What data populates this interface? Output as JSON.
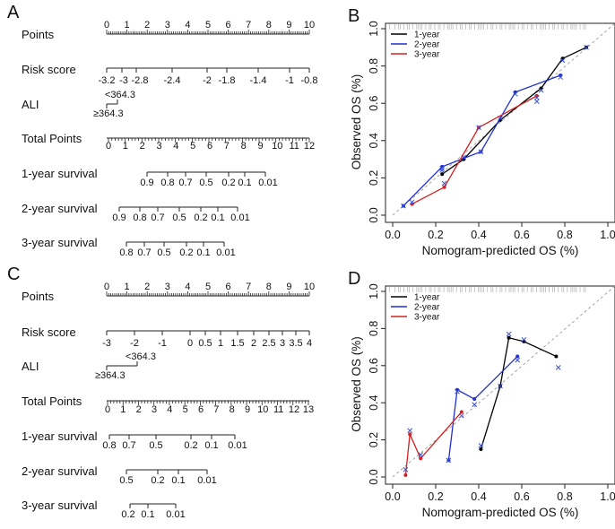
{
  "panels": {
    "A": {
      "letter": "A",
      "rows": [
        {
          "label": "Points",
          "ticks": [
            "0",
            "1",
            "2",
            "3",
            "4",
            "5",
            "6",
            "7",
            "8",
            "9",
            "10"
          ]
        },
        {
          "label": "Risk score",
          "ticks": [
            "-3.2",
            "-3",
            "-2.8",
            "-2.4",
            "-2",
            "-1.8",
            "-1.4",
            "-1",
            "-0.8"
          ]
        },
        {
          "label": "ALI",
          "ticks": [
            "<364.3",
            "≥364.3"
          ]
        },
        {
          "label": "Total Points",
          "ticks": [
            "0",
            "1",
            "2",
            "3",
            "4",
            "5",
            "6",
            "7",
            "8",
            "9",
            "10",
            "11",
            "12"
          ]
        },
        {
          "label": "1-year survival",
          "ticks": [
            "0.9",
            "0.8",
            "0.7",
            "0.5",
            "0.2",
            "0.1",
            "0.01"
          ]
        },
        {
          "label": "2-year survival",
          "ticks": [
            "0.9",
            "0.8",
            "0.7",
            "0.5",
            "0.2",
            "0.1",
            "0.01"
          ]
        },
        {
          "label": "3-year survival",
          "ticks": [
            "0.8",
            "0.7",
            "0.5",
            "0.2",
            "0.1",
            "0.01"
          ]
        }
      ]
    },
    "C": {
      "letter": "C",
      "rows": [
        {
          "label": "Points",
          "ticks": [
            "0",
            "1",
            "2",
            "3",
            "4",
            "5",
            "6",
            "7",
            "8",
            "9",
            "10"
          ]
        },
        {
          "label": "Risk score",
          "ticks": [
            "-3",
            "-2",
            "-1",
            "0",
            "0.5",
            "1",
            "1.5",
            "2",
            "2.5",
            "3",
            "3.5",
            "4"
          ]
        },
        {
          "label": "ALI",
          "ticks": [
            "<364.3",
            "≥364.3"
          ]
        },
        {
          "label": "Total Points",
          "ticks": [
            "0",
            "1",
            "2",
            "3",
            "4",
            "5",
            "6",
            "7",
            "8",
            "9",
            "10",
            "11",
            "12",
            "13"
          ]
        },
        {
          "label": "1-year survival",
          "ticks": [
            "0.8",
            "0.7",
            "0.5",
            "0.2",
            "0.1",
            "0.01"
          ]
        },
        {
          "label": "2-year survival",
          "ticks": [
            "0.5",
            "0.2",
            "0.1",
            "0.01"
          ]
        },
        {
          "label": "3-year survival",
          "ticks": [
            "0.2",
            "0.1",
            "0.01"
          ]
        }
      ]
    }
  },
  "chart_data": [
    {
      "type": "line",
      "letter": "B",
      "title": "",
      "xlabel": "Nomogram-predicted OS (%)",
      "ylabel": "Observed OS (%)",
      "xlim": [
        0,
        1.0
      ],
      "ylim": [
        0,
        1.0
      ],
      "xticks": [
        "0.0",
        "0.2",
        "0.4",
        "0.6",
        "0.8",
        "1.0"
      ],
      "yticks": [
        "0.0",
        "0.2",
        "0.4",
        "0.6",
        "0.8",
        "1.0"
      ],
      "legend": "top-left",
      "series": [
        {
          "name": "1-year",
          "color": "#000000",
          "x": [
            0.23,
            0.33,
            0.5,
            0.69,
            0.79,
            0.9
          ],
          "y": [
            0.22,
            0.3,
            0.51,
            0.68,
            0.84,
            0.9
          ],
          "x_marks": [
            0.23,
            0.33,
            0.5,
            0.69,
            0.79,
            0.9
          ],
          "y_marks": [
            0.24,
            0.31,
            0.52,
            0.67,
            0.83,
            0.9
          ]
        },
        {
          "name": "2-year",
          "color": "#1f2fd0",
          "x": [
            0.05,
            0.23,
            0.41,
            0.57,
            0.78
          ],
          "y": [
            0.05,
            0.26,
            0.34,
            0.66,
            0.75
          ],
          "x_marks": [
            0.05,
            0.23,
            0.41,
            0.57,
            0.67,
            0.78
          ],
          "y_marks": [
            0.05,
            0.25,
            0.34,
            0.65,
            0.61,
            0.74
          ]
        },
        {
          "name": "3-year",
          "color": "#d42020",
          "x": [
            0.09,
            0.24,
            0.4,
            0.67
          ],
          "y": [
            0.06,
            0.15,
            0.47,
            0.64
          ],
          "x_marks": [
            0.09,
            0.24,
            0.4,
            0.67
          ],
          "y_marks": [
            0.07,
            0.17,
            0.47,
            0.63
          ]
        }
      ]
    },
    {
      "type": "line",
      "letter": "D",
      "title": "",
      "xlabel": "Nomogram-predicted OS (%)",
      "ylabel": "Observed OS (%)",
      "xlim": [
        0,
        1.0
      ],
      "ylim": [
        0,
        1.0
      ],
      "xticks": [
        "0.0",
        "0.2",
        "0.4",
        "0.6",
        "0.8",
        "1.0"
      ],
      "yticks": [
        "0.0",
        "0.2",
        "0.4",
        "0.6",
        "0.8",
        "1.0"
      ],
      "legend": "top-left",
      "series": [
        {
          "name": "1-year",
          "color": "#000000",
          "x": [
            0.41,
            0.5,
            0.54,
            0.61,
            0.76
          ],
          "y": [
            0.15,
            0.49,
            0.75,
            0.73,
            0.65
          ],
          "x_marks": [
            0.41,
            0.5,
            0.54,
            0.61,
            0.77
          ],
          "y_marks": [
            0.17,
            0.49,
            0.77,
            0.74,
            0.59
          ]
        },
        {
          "name": "2-year",
          "color": "#1f2fd0",
          "x": [
            0.26,
            0.3,
            0.38,
            0.58
          ],
          "y": [
            0.09,
            0.47,
            0.42,
            0.65
          ],
          "x_marks": [
            0.26,
            0.3,
            0.38,
            0.58
          ],
          "y_marks": [
            0.09,
            0.46,
            0.39,
            0.63
          ]
        },
        {
          "name": "3-year",
          "color": "#d42020",
          "x": [
            0.06,
            0.08,
            0.13,
            0.32
          ],
          "y": [
            0.01,
            0.23,
            0.1,
            0.35
          ],
          "x_marks": [
            0.06,
            0.08,
            0.13,
            0.32
          ],
          "y_marks": [
            0.04,
            0.25,
            0.12,
            0.33
          ]
        }
      ]
    }
  ]
}
